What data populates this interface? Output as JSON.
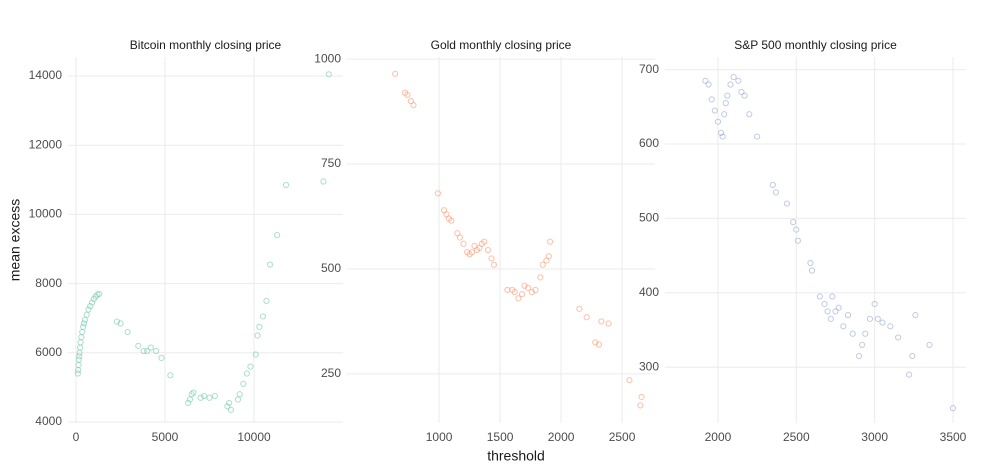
{
  "axis_labels": {
    "x": "threshold",
    "y": "mean excess"
  },
  "chart_data": [
    {
      "type": "scatter",
      "title": "Bitcoin monthly closing price",
      "color": "#66c2a5",
      "xlim": [
        -450,
        15000
      ],
      "ylim": [
        3970,
        14550
      ],
      "xticks": [
        0,
        5000,
        10000
      ],
      "yticks": [
        4000,
        6000,
        8000,
        10000,
        12000,
        14000
      ],
      "x": [
        100,
        120,
        140,
        160,
        180,
        200,
        230,
        260,
        300,
        350,
        400,
        450,
        500,
        600,
        700,
        800,
        900,
        1000,
        1100,
        1200,
        1300,
        2300,
        2500,
        2900,
        3500,
        3800,
        4000,
        4200,
        4500,
        4800,
        5300,
        6300,
        6400,
        6500,
        6600,
        7000,
        7200,
        7500,
        7800,
        8500,
        8600,
        8700,
        9100,
        9200,
        9400,
        9600,
        9800,
        10100,
        10200,
        10300,
        10500,
        10700,
        10900,
        11300,
        11800,
        13900,
        14200
      ],
      "y": [
        5400,
        5500,
        5650,
        5800,
        5900,
        6000,
        6150,
        6300,
        6450,
        6600,
        6750,
        6850,
        6950,
        7100,
        7250,
        7350,
        7450,
        7550,
        7620,
        7680,
        7700,
        6900,
        6850,
        6600,
        6200,
        6050,
        6050,
        6150,
        6050,
        5850,
        5350,
        4550,
        4650,
        4800,
        4850,
        4700,
        4750,
        4700,
        4750,
        4450,
        4550,
        4350,
        4650,
        4800,
        5100,
        5400,
        5600,
        5950,
        6500,
        6750,
        7050,
        7500,
        8550,
        9400,
        10850,
        10950,
        14050
      ]
    },
    {
      "type": "scatter",
      "title": "Gold monthly closing price",
      "color": "#fc8d62",
      "xlim": [
        245,
        2770
      ],
      "ylim": [
        133,
        1005
      ],
      "xticks": [
        1000,
        1500,
        2000,
        2500
      ],
      "yticks": [
        250,
        500,
        750,
        1000
      ],
      "x": [
        640,
        720,
        740,
        770,
        790,
        990,
        1040,
        1060,
        1080,
        1100,
        1150,
        1170,
        1200,
        1230,
        1250,
        1270,
        1290,
        1310,
        1330,
        1350,
        1370,
        1400,
        1430,
        1450,
        1560,
        1600,
        1620,
        1650,
        1680,
        1700,
        1730,
        1760,
        1790,
        1830,
        1850,
        1880,
        1900,
        1910,
        2150,
        2210,
        2280,
        2310,
        2330,
        2390,
        2560,
        2650,
        2660
      ],
      "y": [
        965,
        920,
        915,
        900,
        890,
        680,
        640,
        630,
        620,
        615,
        585,
        575,
        560,
        540,
        535,
        540,
        555,
        545,
        550,
        560,
        565,
        545,
        525,
        510,
        450,
        450,
        445,
        430,
        440,
        460,
        455,
        445,
        450,
        480,
        510,
        520,
        530,
        565,
        405,
        385,
        325,
        320,
        375,
        370,
        235,
        175,
        195
      ]
    },
    {
      "type": "scatter",
      "title": "S&P 500 monthly closing price",
      "color": "#8da0cb",
      "xlim": [
        1662,
        3583
      ],
      "ylim": [
        225,
        717
      ],
      "xticks": [
        2000,
        2500,
        3000,
        3500
      ],
      "yticks": [
        300,
        400,
        500,
        600,
        700
      ],
      "x": [
        1920,
        1940,
        1960,
        1980,
        2000,
        2020,
        2030,
        2040,
        2050,
        2060,
        2080,
        2100,
        2130,
        2150,
        2170,
        2200,
        2250,
        2350,
        2370,
        2440,
        2480,
        2500,
        2510,
        2590,
        2600,
        2650,
        2680,
        2700,
        2720,
        2730,
        2750,
        2770,
        2800,
        2830,
        2860,
        2900,
        2920,
        2940,
        2970,
        3000,
        3020,
        3050,
        3100,
        3150,
        3220,
        3240,
        3260,
        3350,
        3500
      ],
      "y": [
        685,
        680,
        660,
        645,
        630,
        615,
        610,
        640,
        655,
        665,
        680,
        690,
        685,
        670,
        665,
        640,
        610,
        545,
        535,
        520,
        495,
        485,
        470,
        440,
        430,
        395,
        385,
        375,
        365,
        395,
        375,
        380,
        355,
        370,
        345,
        315,
        330,
        345,
        365,
        385,
        365,
        360,
        355,
        340,
        290,
        315,
        370,
        330,
        245
      ]
    }
  ]
}
